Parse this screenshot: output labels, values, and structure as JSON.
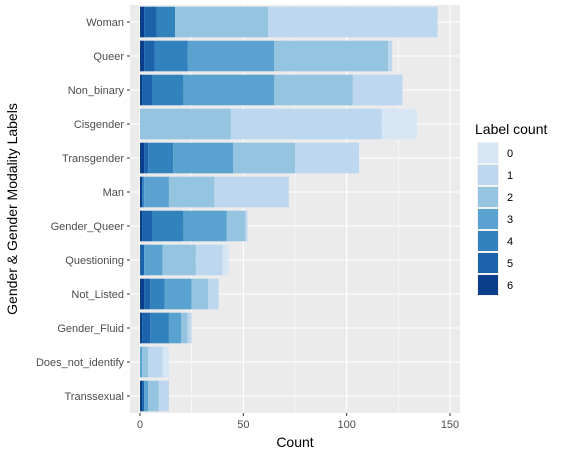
{
  "chart_data": {
    "type": "bar",
    "stacked": true,
    "orientation": "horizontal",
    "title": "",
    "xlabel": "Count",
    "ylabel": "Gender & Gender Modality Labels",
    "xlim": [
      0,
      150
    ],
    "xticks": [
      0,
      50,
      100,
      150
    ],
    "grid": true,
    "legend_title": "Label count",
    "legend_position": "right",
    "categories": [
      "Woman",
      "Queer",
      "Non_binary",
      "Cisgender",
      "Transgender",
      "Man",
      "Gender_Queer",
      "Questioning",
      "Not_Listed",
      "Gender_Fluid",
      "Does_not_identify",
      "Transsexual"
    ],
    "series": [
      {
        "name": "0",
        "color": "#d6e6f4",
        "values": [
          0,
          0,
          0,
          17,
          0,
          0,
          0,
          3,
          0,
          0,
          3,
          0
        ]
      },
      {
        "name": "1",
        "color": "#bdd7ee",
        "values": [
          82,
          2,
          24,
          73,
          31,
          36,
          1,
          13,
          5,
          2,
          7,
          5
        ]
      },
      {
        "name": "2",
        "color": "#94c4df",
        "values": [
          45,
          55,
          38,
          44,
          30,
          22,
          9,
          16,
          8,
          3,
          3,
          5
        ]
      },
      {
        "name": "3",
        "color": "#5aa2cf",
        "values": [
          0,
          42,
          44,
          0,
          29,
          12,
          21,
          9,
          13,
          6,
          1,
          2
        ]
      },
      {
        "name": "4",
        "color": "#3282bd",
        "values": [
          9,
          16,
          15,
          0,
          12,
          1,
          15,
          0,
          7,
          9,
          0,
          0
        ]
      },
      {
        "name": "5",
        "color": "#1b63ab",
        "values": [
          6,
          5,
          5,
          0,
          2,
          0,
          5,
          2,
          3,
          4,
          0,
          1
        ]
      },
      {
        "name": "6",
        "color": "#0b3e8a",
        "values": [
          2,
          2,
          1,
          0,
          2,
          1,
          1,
          0,
          2,
          1,
          0,
          1
        ]
      }
    ]
  }
}
